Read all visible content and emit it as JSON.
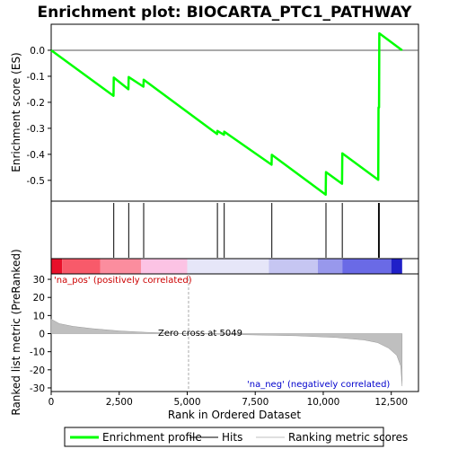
{
  "chart_data": {
    "type": "line",
    "title": "Enrichment plot: BIOCARTA_PTC1_PATHWAY",
    "xlabel": "Rank in Ordered Dataset",
    "ylabel_top": "Enrichment score (ES)",
    "ylabel_bottom": "Ranked list metric (PreRanked)",
    "xlim": [
      0,
      13500
    ],
    "x_ticks": [
      0,
      2500,
      5000,
      7500,
      10000,
      12500
    ],
    "x_tick_labels": [
      "0",
      "2,500",
      "5,000",
      "7,500",
      "10,000",
      "12,500"
    ],
    "es_ylim": [
      -0.58,
      0.1
    ],
    "es_ticks": [
      0.0,
      -0.1,
      -0.2,
      -0.3,
      -0.4,
      -0.5
    ],
    "es_tick_labels": [
      "0.0",
      "-0.1",
      "-0.2",
      "-0.3",
      "-0.4",
      "-0.5"
    ],
    "metric_ylim": [
      -32,
      33
    ],
    "metric_ticks": [
      30,
      20,
      10,
      0,
      -10,
      -20,
      -30
    ],
    "metric_tick_labels": [
      "30",
      "20",
      "10",
      "0",
      "-10",
      "-20",
      "-30"
    ],
    "series": [
      {
        "name": "Enrichment profile",
        "color": "#00ff00",
        "x": [
          0,
          2290,
          2300,
          2840,
          2850,
          3390,
          3400,
          6100,
          6110,
          6350,
          6360,
          8100,
          8110,
          10090,
          10100,
          10690,
          10700,
          12020,
          12030,
          12050,
          12060,
          12900
        ],
        "y": [
          0.0,
          -0.175,
          -0.105,
          -0.15,
          -0.103,
          -0.14,
          -0.113,
          -0.322,
          -0.31,
          -0.325,
          -0.313,
          -0.44,
          -0.402,
          -0.555,
          -0.468,
          -0.513,
          -0.396,
          -0.498,
          -0.22,
          -0.22,
          0.065,
          0.0
        ]
      }
    ],
    "hits": [
      2300,
      2850,
      3400,
      6110,
      6360,
      8110,
      10100,
      10700,
      12030,
      12060
    ],
    "metric_curve": {
      "x": [
        0,
        300,
        800,
        1500,
        2500,
        3500,
        5049,
        7000,
        9000,
        10500,
        11500,
        12000,
        12400,
        12700,
        12850,
        12900
      ],
      "y": [
        8,
        5.5,
        4,
        2.8,
        1.5,
        0.7,
        0,
        -0.6,
        -1.2,
        -2.2,
        -3.5,
        -5,
        -8,
        -12,
        -18,
        -29
      ]
    },
    "zero_cross_x": 5049,
    "annotations": {
      "pos_label": "'na_pos' (positively correlated)",
      "neg_label": "'na_neg' (negatively correlated)",
      "zero_cross": "Zero cross at 5049"
    },
    "colors": {
      "pos_label": "#cc0000",
      "neg_label": "#0000cc",
      "hit_line": "#000000",
      "metric_fill": "#bfbfbf",
      "zero_line": "#aaaaaa"
    },
    "color_band": [
      {
        "from": 0,
        "to": 400,
        "color": "#e8102a"
      },
      {
        "from": 400,
        "to": 1800,
        "color": "#f85a6a"
      },
      {
        "from": 1800,
        "to": 3300,
        "color": "#fb8d9e"
      },
      {
        "from": 3300,
        "to": 5000,
        "color": "#fcc3e4"
      },
      {
        "from": 5000,
        "to": 8000,
        "color": "#e6e6f8"
      },
      {
        "from": 8000,
        "to": 9800,
        "color": "#c6c6f2"
      },
      {
        "from": 9800,
        "to": 10700,
        "color": "#9898ec"
      },
      {
        "from": 10700,
        "to": 12500,
        "color": "#6a6ae6"
      },
      {
        "from": 12500,
        "to": 12900,
        "color": "#2020c8"
      }
    ],
    "legend": [
      {
        "label": "Enrichment profile",
        "color": "#00ff00",
        "kind": "line-thick"
      },
      {
        "label": "Hits",
        "color": "#000000",
        "kind": "line-thin"
      },
      {
        "label": "Ranking metric scores",
        "color": "#bfbfbf",
        "kind": "line-thin"
      }
    ]
  }
}
